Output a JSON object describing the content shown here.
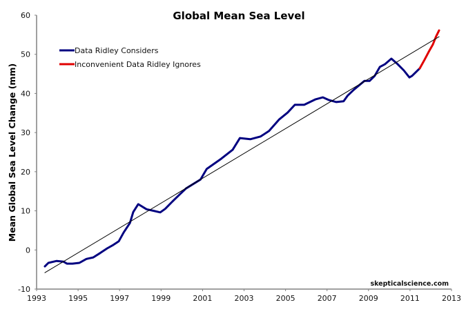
{
  "chart_data": {
    "type": "line",
    "title": "Global Mean Sea Level",
    "xlabel": "",
    "ylabel": "Mean Global Sea Level Change (mm)",
    "xlim": [
      1993,
      2013
    ],
    "ylim": [
      -10,
      60
    ],
    "x_ticks": [
      1993,
      1995,
      1997,
      1999,
      2001,
      2003,
      2005,
      2007,
      2009,
      2011,
      2013
    ],
    "y_ticks": [
      -10,
      0,
      10,
      20,
      30,
      40,
      50,
      60
    ],
    "grid": false,
    "legend_position": "top-left",
    "credit": "skepticalscience.com",
    "series": [
      {
        "name": "Data Ridley Considers",
        "color": "#000080",
        "x": [
          1993.4,
          1993.57,
          1993.97,
          1994.3,
          1994.46,
          1994.73,
          1995.06,
          1995.4,
          1995.73,
          1996.06,
          1996.4,
          1996.7,
          1996.96,
          1997.2,
          1997.5,
          1997.66,
          1997.9,
          1998.3,
          1998.56,
          1998.96,
          1999.2,
          1999.55,
          1999.9,
          2000.2,
          2000.9,
          2001.2,
          2001.9,
          2002.45,
          2002.8,
          2003.3,
          2003.8,
          2004.2,
          2004.7,
          2005.1,
          2005.45,
          2005.9,
          2006.45,
          2006.8,
          2007.1,
          2007.45,
          2007.8,
          2008.0,
          2008.3,
          2008.8,
          2009.05,
          2009.3,
          2009.55,
          2009.8,
          2010.1,
          2010.4,
          2010.7,
          2010.97,
          2011.1,
          2011.47
        ],
        "y": [
          -4.2,
          -3.3,
          -2.8,
          -3.0,
          -3.5,
          -3.5,
          -3.3,
          -2.3,
          -1.9,
          -0.8,
          0.4,
          1.3,
          2.2,
          4.5,
          6.9,
          9.7,
          11.7,
          10.4,
          10.1,
          9.6,
          10.5,
          12.4,
          14.2,
          15.7,
          18.0,
          20.7,
          23.3,
          25.6,
          28.6,
          28.3,
          29.0,
          30.4,
          33.4,
          35.1,
          37.1,
          37.1,
          38.5,
          39.0,
          38.3,
          37.8,
          38.0,
          39.5,
          41.0,
          43.2,
          43.2,
          44.5,
          46.8,
          47.5,
          48.9,
          47.5,
          45.9,
          44.1,
          44.5,
          46.4
        ]
      },
      {
        "name": "Inconvenient Data Ridley Ignores",
        "color": "#e00000",
        "x": [
          2011.47,
          2011.7,
          2011.9,
          2012.1,
          2012.25,
          2012.4
        ],
        "y": [
          46.4,
          48.6,
          50.6,
          52.5,
          54.5,
          56.1
        ]
      },
      {
        "name": "Trend",
        "color": "#000000",
        "x": [
          1993.4,
          2012.4
        ],
        "y": [
          -5.8,
          54.5
        ]
      }
    ]
  }
}
